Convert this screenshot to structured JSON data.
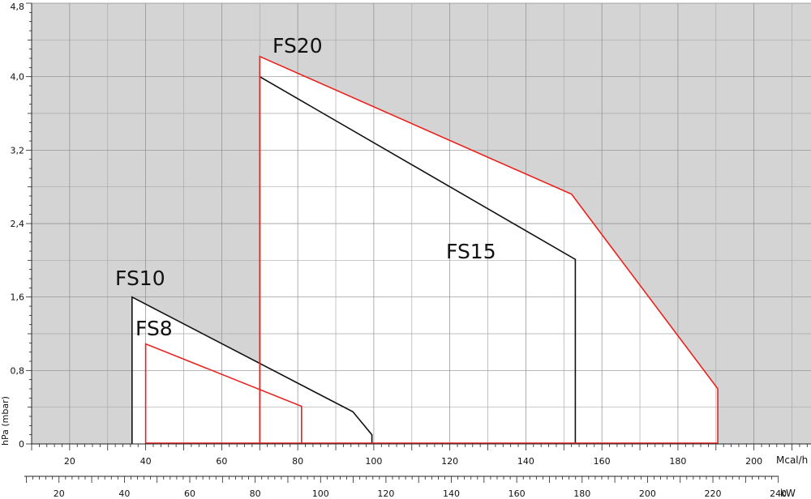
{
  "chart_data": {
    "type": "area",
    "ylabel": "hPa (mbar)",
    "x_unit": "Mcal/h",
    "x2_unit": "kW",
    "ylim": [
      0,
      4.8
    ],
    "xlim": [
      10,
      215
    ],
    "y_ticks": [
      "0",
      "0,8",
      "1,6",
      "2,4",
      "3,2",
      "4,0",
      "4,8"
    ],
    "x_ticks": [
      "20",
      "40",
      "60",
      "80",
      "100",
      "120",
      "140",
      "160",
      "180",
      "200"
    ],
    "x2_ticks": [
      "20",
      "40",
      "60",
      "80",
      "100",
      "120",
      "140",
      "160",
      "180",
      "200",
      "220",
      "240"
    ],
    "grid": true,
    "series": [
      {
        "name": "FS8",
        "color": "#e8231f",
        "points": [
          [
            40,
            0
          ],
          [
            40,
            1.09
          ],
          [
            81,
            0.41
          ],
          [
            81,
            0
          ]
        ]
      },
      {
        "name": "FS10",
        "color": "#111111",
        "points": [
          [
            36.4,
            0
          ],
          [
            36.4,
            1.6
          ],
          [
            94.5,
            0.35
          ],
          [
            99.5,
            0.1
          ],
          [
            99.5,
            0
          ]
        ]
      },
      {
        "name": "FS15",
        "color": "#111111",
        "points": [
          [
            70,
            0
          ],
          [
            70,
            4.0
          ],
          [
            153,
            2.01
          ],
          [
            153,
            0
          ]
        ]
      },
      {
        "name": "FS20",
        "color": "#e8231f",
        "points": [
          [
            70,
            0
          ],
          [
            70,
            4.22
          ],
          [
            152,
            2.72
          ],
          [
            190.5,
            0.6
          ],
          [
            190.5,
            0
          ]
        ]
      }
    ]
  }
}
